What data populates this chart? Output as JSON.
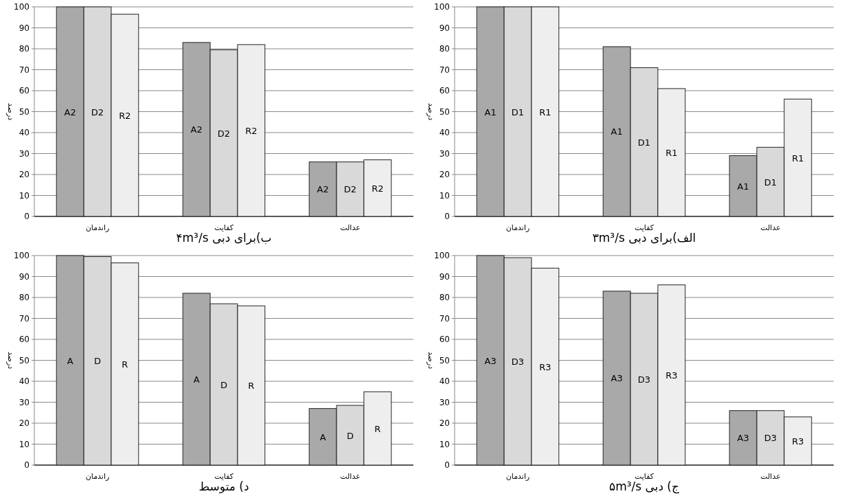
{
  "chart_data": [
    {
      "type": "bar",
      "title": "الف)برای دبی ۳m³/s",
      "ylabel": "درصد",
      "categories": [
        "راندمان",
        "کفایت",
        "عدالت"
      ],
      "ylim": [
        0,
        100
      ],
      "yticks": [
        0,
        10,
        20,
        30,
        40,
        50,
        60,
        70,
        80,
        90,
        100
      ],
      "grid": "y",
      "series": [
        {
          "name": "A1",
          "color": "#a9a9a9",
          "values": [
            100,
            81,
            29
          ]
        },
        {
          "name": "D1",
          "color": "#d9d9d9",
          "values": [
            100,
            71,
            33
          ]
        },
        {
          "name": "R1",
          "color": "#eeeeee",
          "values": [
            100,
            61,
            56
          ]
        }
      ]
    },
    {
      "type": "bar",
      "title": "ب)برای دبی ۴m³/s",
      "ylabel": "درصد",
      "categories": [
        "راندمان",
        "کفایت",
        "عدالت"
      ],
      "ylim": [
        0,
        100
      ],
      "yticks": [
        0,
        10,
        20,
        30,
        40,
        50,
        60,
        70,
        80,
        90,
        100
      ],
      "grid": "y",
      "series": [
        {
          "name": "A2",
          "color": "#a9a9a9",
          "values": [
            100,
            83,
            26
          ]
        },
        {
          "name": "D2",
          "color": "#d9d9d9",
          "values": [
            100,
            79.5,
            26
          ]
        },
        {
          "name": "R2",
          "color": "#eeeeee",
          "values": [
            96.5,
            82,
            27
          ]
        }
      ]
    },
    {
      "type": "bar",
      "title": "ج) دبی ۵m³/s",
      "ylabel": "درصد",
      "categories": [
        "راندمان",
        "کفایت",
        "عدالت"
      ],
      "ylim": [
        0,
        100
      ],
      "yticks": [
        0,
        10,
        20,
        30,
        40,
        50,
        60,
        70,
        80,
        90,
        100
      ],
      "grid": "y",
      "series": [
        {
          "name": "A3",
          "color": "#a9a9a9",
          "values": [
            100,
            83,
            26
          ]
        },
        {
          "name": "D3",
          "color": "#d9d9d9",
          "values": [
            99,
            82,
            26
          ]
        },
        {
          "name": "R3",
          "color": "#eeeeee",
          "values": [
            94,
            86,
            23
          ]
        }
      ]
    },
    {
      "type": "bar",
      "title": "د) متوسط",
      "ylabel": "درصد",
      "categories": [
        "راندمان",
        "کفایت",
        "عدالت"
      ],
      "ylim": [
        0,
        100
      ],
      "yticks": [
        0,
        10,
        20,
        30,
        40,
        50,
        60,
        70,
        80,
        90,
        100
      ],
      "grid": "y",
      "series": [
        {
          "name": "A",
          "color": "#a9a9a9",
          "values": [
            100,
            82,
            27
          ]
        },
        {
          "name": "D",
          "color": "#d9d9d9",
          "values": [
            99.5,
            77,
            28.5
          ]
        },
        {
          "name": "R",
          "color": "#eeeeee",
          "values": [
            96.5,
            76,
            35
          ]
        }
      ]
    }
  ]
}
